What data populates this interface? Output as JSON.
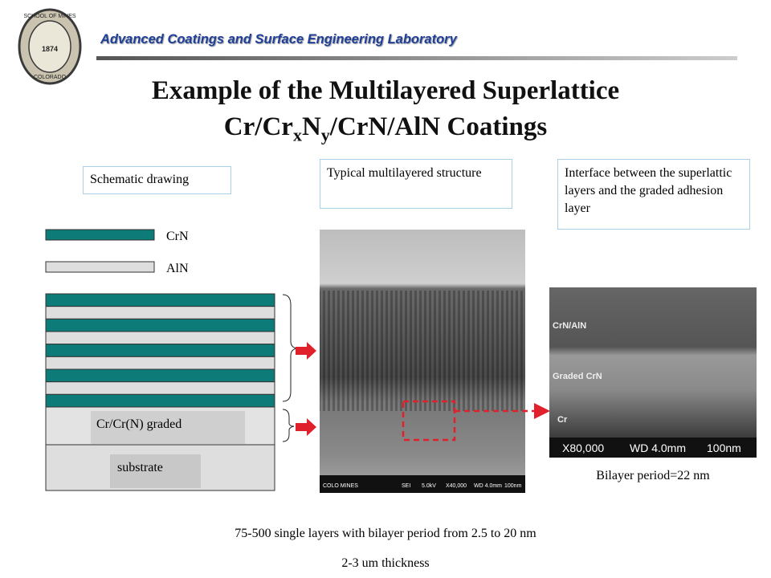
{
  "header": {
    "lab_name": "Advanced Coatings and Surface Engineering Laboratory",
    "logo": {
      "top": "SCHOOL OF MINES",
      "year": "1874",
      "bottom": "COLORADO"
    }
  },
  "title": {
    "line1": "Example of the Multilayered Superlattice",
    "line2": {
      "part1": "Cr/Cr",
      "sub1": "x",
      "part2": "N",
      "sub2": "y",
      "part3": "/CrN/AlN Coatings"
    }
  },
  "captions": {
    "schematic": "Schematic drawing",
    "structure": "Typical multilayered structure",
    "interface": "Interface between the superlattic layers and the graded adhesion layer"
  },
  "schematic": {
    "legend": {
      "crn": "CrN",
      "aln": "AlN"
    },
    "graded": "Cr/Cr(N) graded",
    "substrate": "substrate"
  },
  "sem1": {
    "labels": [
      "COLO MINES",
      "SEI",
      "5.0kV",
      "X40,000",
      "WD 4.0mm",
      "100nm"
    ]
  },
  "sem2": {
    "layers": [
      "CrN/AlN",
      "Graded CrN",
      "Cr"
    ],
    "info": [
      "X80,000",
      "WD 4.0mm",
      "100nm"
    ]
  },
  "bilayer": "Bilayer period=22 nm",
  "footer": {
    "line1": "75-500 single layers with bilayer period from 2.5 to 20 nm",
    "line2": "2-3 um thickness"
  }
}
